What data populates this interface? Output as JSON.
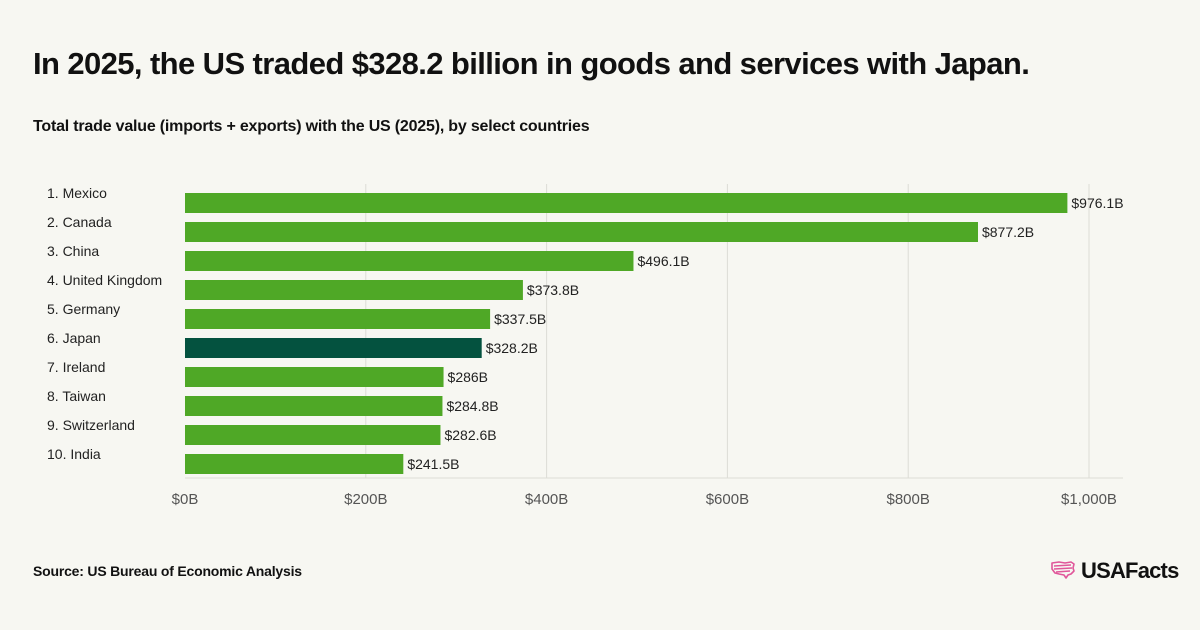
{
  "header": {
    "title": "In 2025, the US traded $328.2 billion in goods and services with Japan.",
    "subtitle": "Total trade value (imports + exports) with the US (2025), by select countries"
  },
  "footer": {
    "source": "Source: US Bureau of Economic Analysis",
    "logo_text": "USAFacts",
    "logo_icon": "us-map-flag-icon"
  },
  "colors": {
    "bar": "#4fa826",
    "highlight": "#04523f",
    "grid": "#dcdcd6",
    "axis_text": "#555555"
  },
  "chart_data": {
    "type": "bar",
    "orientation": "horizontal",
    "categories": [
      "1. Mexico",
      "2. Canada",
      "3. China",
      "4. United Kingdom",
      "5. Germany",
      "6. Japan",
      "7. Ireland",
      "8. Taiwan",
      "9. Switzerland",
      "10. India"
    ],
    "values": [
      976.1,
      877.2,
      496.1,
      373.8,
      337.5,
      328.2,
      286,
      284.8,
      282.6,
      241.5
    ],
    "value_labels": [
      "$976.1B",
      "$877.2B",
      "$496.1B",
      "$373.8B",
      "$337.5B",
      "$328.2B",
      "$286B",
      "$284.8B",
      "$282.6B",
      "$241.5B"
    ],
    "highlight_category": "6. Japan",
    "unit": "billion USD",
    "xlim": [
      0,
      1000
    ],
    "xticks": [
      0,
      200,
      400,
      600,
      800,
      1000
    ],
    "xtick_labels": [
      "$0B",
      "$200B",
      "$400B",
      "$600B",
      "$800B",
      "$1,000B"
    ],
    "grid": true
  }
}
